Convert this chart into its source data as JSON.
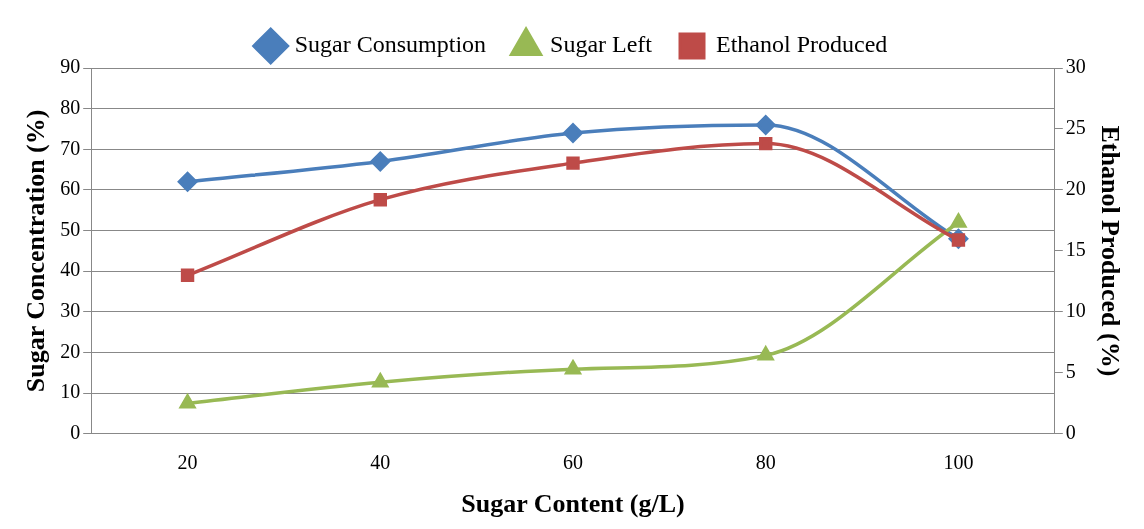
{
  "chart_data": {
    "type": "line",
    "xlabel": "Sugar Content (g/L)",
    "ylabel": "Sugar Concentration (%)",
    "y2label": "Ethanol Produced (%)",
    "categories": [
      "20",
      "40",
      "60",
      "80",
      "100"
    ],
    "series": [
      {
        "name": "Sugar Consumption",
        "color": "#4a7ebb",
        "marker": "diamond",
        "values": [
          62,
          67,
          74,
          76,
          48
        ]
      },
      {
        "name": "Sugar Left",
        "color": "#98b954",
        "marker": "triangle",
        "values": [
          7.5,
          12.7,
          15.9,
          19.3,
          52
        ]
      },
      {
        "name": "Ethanol Produced",
        "color": "#be4b48",
        "marker": "square",
        "axis": "y2",
        "values": [
          13,
          19.2,
          22.2,
          23.8,
          15.9
        ]
      }
    ],
    "ylim": [
      0,
      90
    ],
    "yticks": [
      0,
      10,
      20,
      30,
      40,
      50,
      60,
      70,
      80,
      90
    ],
    "y2lim": [
      0,
      30
    ],
    "y2ticks": [
      0,
      5,
      10,
      15,
      20,
      25,
      30
    ],
    "grid": "y",
    "legend": "top"
  }
}
